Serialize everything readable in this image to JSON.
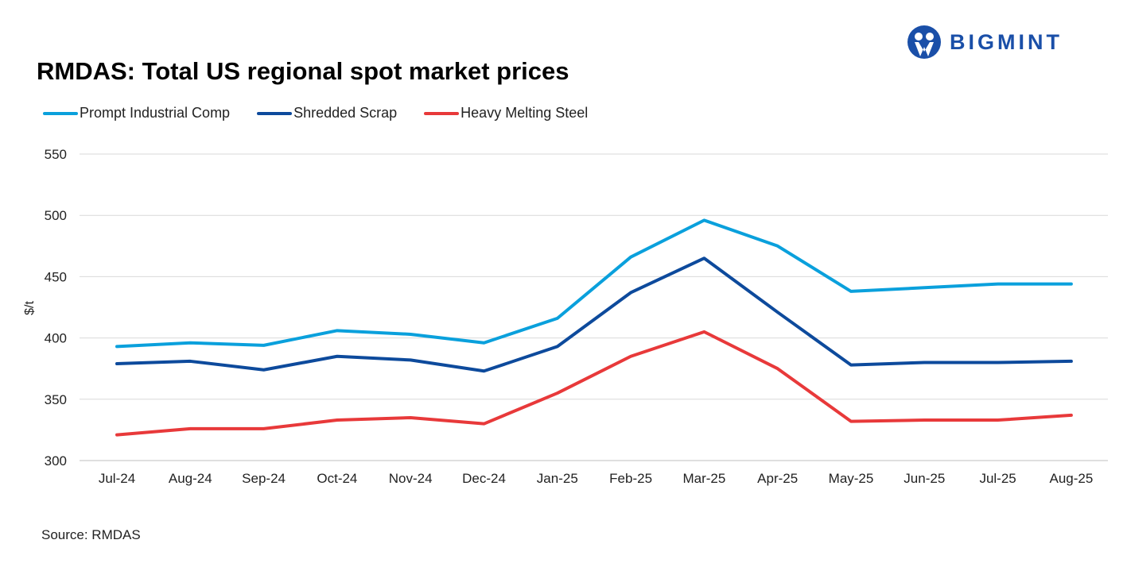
{
  "chart_data": {
    "type": "line",
    "title": "RMDAS: Total US regional spot market prices",
    "xlabel": "",
    "ylabel": "$/t",
    "ylim": [
      300,
      550
    ],
    "yticks": [
      300,
      350,
      400,
      450,
      500,
      550
    ],
    "grid": true,
    "legend_position": "top-left",
    "categories": [
      "Jul-24",
      "Aug-24",
      "Sep-24",
      "Oct-24",
      "Nov-24",
      "Dec-24",
      "Jan-25",
      "Feb-25",
      "Mar-25",
      "Apr-25",
      "May-25",
      "Jun-25",
      "Jul-25",
      "Aug-25"
    ],
    "series": [
      {
        "name": "Prompt Industrial Comp",
        "color": "#0aa0dc",
        "values": [
          393,
          396,
          394,
          406,
          403,
          396,
          416,
          466,
          496,
          475,
          438,
          441,
          444,
          444
        ]
      },
      {
        "name": "Shredded Scrap",
        "color": "#0d4a9c",
        "values": [
          379,
          381,
          374,
          385,
          382,
          373,
          393,
          437,
          465,
          421,
          378,
          380,
          380,
          381
        ]
      },
      {
        "name": "Heavy Melting Steel",
        "color": "#e8393a",
        "values": [
          321,
          326,
          326,
          333,
          335,
          330,
          355,
          385,
          405,
          375,
          332,
          333,
          333,
          337
        ]
      }
    ]
  },
  "source": "Source: RMDAS",
  "logo": {
    "text": "BIGMINT",
    "color": "#1a4fa8"
  }
}
